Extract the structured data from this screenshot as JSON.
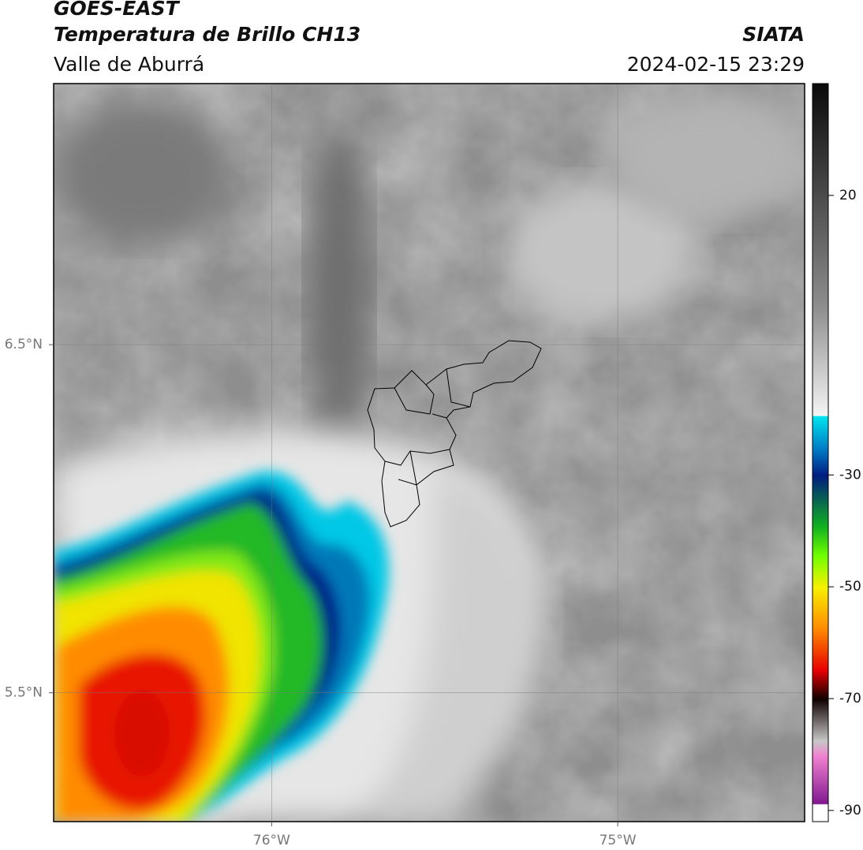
{
  "header": {
    "title": "GOES-EAST",
    "subtitle": "Temperatura de Brillo CH13",
    "region": "Valle de Aburrá",
    "source": "SIATA",
    "datetime": "2024-02-15 23:29"
  },
  "map": {
    "xlim": [
      -76.63,
      -74.46
    ],
    "ylim": [
      5.13,
      7.25
    ],
    "xticks": [
      {
        "value": -76,
        "label": "76°W"
      },
      {
        "value": -75,
        "label": "75°W"
      }
    ],
    "yticks": [
      {
        "value": 6.5,
        "label": "6.5°N"
      },
      {
        "value": 5.5,
        "label": "5.5°N"
      }
    ],
    "grid": true
  },
  "colorbar": {
    "lim": [
      -92,
      40
    ],
    "ticks": [
      20,
      -30,
      -50,
      -70,
      -90
    ]
  }
}
